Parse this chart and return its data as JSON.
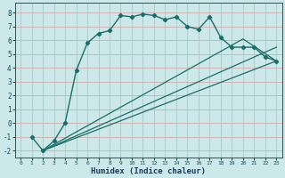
{
  "xlabel": "Humidex (Indice chaleur)",
  "bg_color": "#cce8e8",
  "line_color": "#1a6e6a",
  "grid_color_major": "#b0d0d0",
  "grid_color_minor": "#e8c0c0",
  "xlim": [
    -0.5,
    23.5
  ],
  "ylim": [
    -2.5,
    8.7
  ],
  "xticks": [
    0,
    1,
    2,
    3,
    4,
    5,
    6,
    7,
    8,
    9,
    10,
    11,
    12,
    13,
    14,
    15,
    16,
    17,
    18,
    19,
    20,
    21,
    22,
    23
  ],
  "yticks": [
    -2,
    -1,
    0,
    1,
    2,
    3,
    4,
    5,
    6,
    7,
    8
  ],
  "line1_x": [
    1,
    2,
    3,
    4,
    5,
    6,
    7,
    8,
    9,
    10,
    11,
    12,
    13,
    14,
    15,
    16,
    17,
    18,
    19,
    20,
    21,
    22,
    23
  ],
  "line1_y": [
    -1,
    -2,
    -1.3,
    0,
    3.8,
    5.8,
    6.5,
    6.7,
    7.8,
    7.7,
    7.9,
    7.8,
    7.5,
    7.7,
    7.0,
    6.8,
    7.7,
    6.2,
    5.5,
    5.5,
    5.5,
    4.8,
    4.5
  ],
  "line2_x": [
    2,
    23
  ],
  "line2_y": [
    -2.0,
    5.5
  ],
  "line3_x": [
    2,
    23
  ],
  "line3_y": [
    -2.0,
    4.5
  ],
  "line4_x": [
    2,
    20,
    23
  ],
  "line4_y": [
    -2.0,
    6.1,
    4.5
  ]
}
